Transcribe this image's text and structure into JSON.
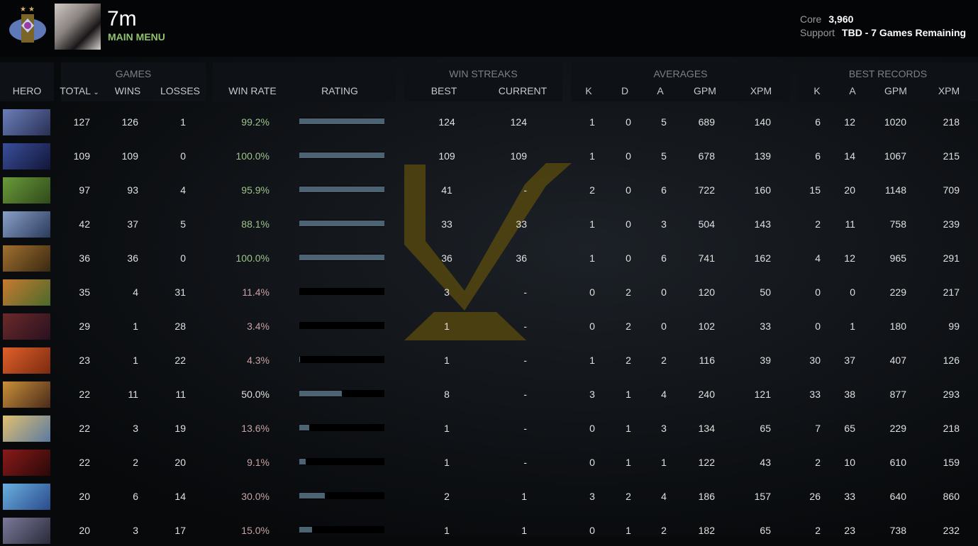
{
  "header": {
    "player_name": "7m",
    "main_menu": "MAIN MENU",
    "core_label": "Core",
    "core_value": "3,960",
    "support_label": "Support",
    "support_value": "TBD - 7 Games Remaining"
  },
  "groups": {
    "games": "GAMES",
    "win_streaks": "WIN STREAKS",
    "averages": "AVERAGES",
    "best_records": "BEST RECORDS"
  },
  "columns": {
    "hero": "HERO",
    "total": "TOTAL",
    "wins": "WINS",
    "losses": "LOSSES",
    "win_rate": "WIN RATE",
    "rating": "RATING",
    "best": "BEST",
    "current": "CURRENT",
    "k": "K",
    "d": "D",
    "a": "A",
    "gpm": "GPM",
    "xpm": "XPM",
    "br_k": "K",
    "br_a": "A",
    "br_gpm": "GPM",
    "br_xpm": "XPM"
  },
  "sort": {
    "column": "total",
    "direction": "descending"
  },
  "colors": {
    "win_rate_high": "#9cc48a",
    "win_rate_low": "#c9a3a3",
    "win_rate_neutral": "#e0e0e0",
    "rating_bar": "#4b6372",
    "accent_green": "#8fc36e"
  },
  "rows": [
    {
      "total": "127",
      "wins": "126",
      "losses": "1",
      "win_rate": "99.2%",
      "rating": 1.0,
      "best": "124",
      "current": "124",
      "k": "1",
      "d": "0",
      "a": "5",
      "gpm": "689",
      "xpm": "140",
      "br_k": "6",
      "br_a": "12",
      "br_gpm": "1020",
      "br_xpm": "218",
      "tone": "high"
    },
    {
      "total": "109",
      "wins": "109",
      "losses": "0",
      "win_rate": "100.0%",
      "rating": 1.0,
      "best": "109",
      "current": "109",
      "k": "1",
      "d": "0",
      "a": "5",
      "gpm": "678",
      "xpm": "139",
      "br_k": "6",
      "br_a": "14",
      "br_gpm": "1067",
      "br_xpm": "215",
      "tone": "high"
    },
    {
      "total": "97",
      "wins": "93",
      "losses": "4",
      "win_rate": "95.9%",
      "rating": 1.0,
      "best": "41",
      "current": "-",
      "k": "2",
      "d": "0",
      "a": "6",
      "gpm": "722",
      "xpm": "160",
      "br_k": "15",
      "br_a": "20",
      "br_gpm": "1148",
      "br_xpm": "709",
      "tone": "high"
    },
    {
      "total": "42",
      "wins": "37",
      "losses": "5",
      "win_rate": "88.1%",
      "rating": 1.0,
      "best": "33",
      "current": "33",
      "k": "1",
      "d": "0",
      "a": "3",
      "gpm": "504",
      "xpm": "143",
      "br_k": "2",
      "br_a": "11",
      "br_gpm": "758",
      "br_xpm": "239",
      "tone": "high"
    },
    {
      "total": "36",
      "wins": "36",
      "losses": "0",
      "win_rate": "100.0%",
      "rating": 1.0,
      "best": "36",
      "current": "36",
      "k": "1",
      "d": "0",
      "a": "6",
      "gpm": "741",
      "xpm": "162",
      "br_k": "4",
      "br_a": "12",
      "br_gpm": "965",
      "br_xpm": "291",
      "tone": "high"
    },
    {
      "total": "35",
      "wins": "4",
      "losses": "31",
      "win_rate": "11.4%",
      "rating": 0,
      "best": "3",
      "current": "-",
      "k": "0",
      "d": "2",
      "a": "0",
      "gpm": "120",
      "xpm": "50",
      "br_k": "0",
      "br_a": "0",
      "br_gpm": "229",
      "br_xpm": "217",
      "tone": "low"
    },
    {
      "total": "29",
      "wins": "1",
      "losses": "28",
      "win_rate": "3.4%",
      "rating": 0,
      "best": "1",
      "current": "-",
      "k": "0",
      "d": "2",
      "a": "0",
      "gpm": "102",
      "xpm": "33",
      "br_k": "0",
      "br_a": "1",
      "br_gpm": "180",
      "br_xpm": "99",
      "tone": "low"
    },
    {
      "total": "23",
      "wins": "1",
      "losses": "22",
      "win_rate": "4.3%",
      "rating": 0.01,
      "best": "1",
      "current": "-",
      "k": "1",
      "d": "2",
      "a": "2",
      "gpm": "116",
      "xpm": "39",
      "br_k": "30",
      "br_a": "37",
      "br_gpm": "407",
      "br_xpm": "126",
      "tone": "low"
    },
    {
      "total": "22",
      "wins": "11",
      "losses": "11",
      "win_rate": "50.0%",
      "rating": 0.5,
      "best": "8",
      "current": "-",
      "k": "3",
      "d": "1",
      "a": "4",
      "gpm": "240",
      "xpm": "121",
      "br_k": "33",
      "br_a": "38",
      "br_gpm": "877",
      "br_xpm": "293",
      "tone": "neutral"
    },
    {
      "total": "22",
      "wins": "3",
      "losses": "19",
      "win_rate": "13.6%",
      "rating": 0.12,
      "best": "1",
      "current": "-",
      "k": "0",
      "d": "1",
      "a": "3",
      "gpm": "134",
      "xpm": "65",
      "br_k": "7",
      "br_a": "65",
      "br_gpm": "229",
      "br_xpm": "218",
      "tone": "low"
    },
    {
      "total": "22",
      "wins": "2",
      "losses": "20",
      "win_rate": "9.1%",
      "rating": 0.075,
      "best": "1",
      "current": "-",
      "k": "0",
      "d": "1",
      "a": "1",
      "gpm": "122",
      "xpm": "43",
      "br_k": "2",
      "br_a": "10",
      "br_gpm": "610",
      "br_xpm": "159",
      "tone": "low"
    },
    {
      "total": "20",
      "wins": "6",
      "losses": "14",
      "win_rate": "30.0%",
      "rating": 0.3,
      "best": "2",
      "current": "1",
      "k": "3",
      "d": "2",
      "a": "4",
      "gpm": "186",
      "xpm": "157",
      "br_k": "26",
      "br_a": "33",
      "br_gpm": "640",
      "br_xpm": "860",
      "tone": "low"
    },
    {
      "total": "20",
      "wins": "3",
      "losses": "17",
      "win_rate": "15.0%",
      "rating": 0.15,
      "best": "1",
      "current": "1",
      "k": "0",
      "d": "1",
      "a": "2",
      "gpm": "182",
      "xpm": "65",
      "br_k": "2",
      "br_a": "23",
      "br_gpm": "738",
      "br_xpm": "232",
      "tone": "low"
    }
  ]
}
